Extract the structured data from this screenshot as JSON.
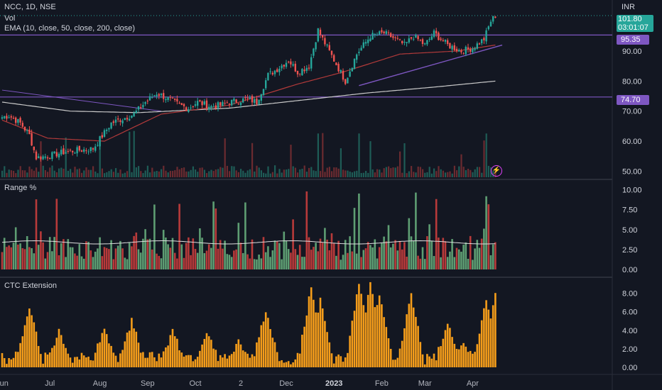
{
  "header": {
    "symbol_line": "NCC, 1D, NSE",
    "vol_label": "Vol",
    "ema_label": "EMA (10, close, 50, close, 200, close)",
    "currency": "INR"
  },
  "price_badge": {
    "price": "101.80",
    "countdown": "03:01:07",
    "color": "#26a69a"
  },
  "level_badges": [
    {
      "label": "95.35",
      "color": "#7e57c2"
    },
    {
      "label": "74.70",
      "color": "#7e57c2"
    }
  ],
  "panes": {
    "range_title": "Range %",
    "ctc_title": "CTC Extension"
  },
  "icons": {
    "lightning": "lightning-icon"
  },
  "colors": {
    "up": "#26a69a",
    "down": "#ef5350",
    "ema_red": "#b23a3a",
    "ema_white": "#c9c9c9",
    "purple": "#7e57c2",
    "ctc": "#f59d1a",
    "range_up": "#5e9e73",
    "range_down": "#b83a3a"
  },
  "chart_data": [
    {
      "type": "candlestick",
      "title": "NCC, 1D, NSE",
      "y_ticks": [
        "60.00",
        "70.00",
        "80.00",
        "90.00",
        "50.00"
      ],
      "y_tick_values": [
        60,
        70,
        80,
        90,
        50
      ],
      "ylim": [
        47.5,
        107
      ],
      "x_ticks": [
        "Jun",
        "Jul",
        "Aug",
        "Sep",
        "Oct",
        "2",
        "Dec",
        "2023",
        "Feb",
        "Mar",
        "Apr"
      ],
      "x_tick_index": [
        0,
        21,
        43,
        64,
        85,
        105,
        125,
        146,
        167,
        186,
        207
      ],
      "horizontal_levels": [
        95.35,
        74.7
      ],
      "close_anchors": [
        [
          0,
          68
        ],
        [
          3,
          68.5
        ],
        [
          8,
          66
        ],
        [
          12,
          62
        ],
        [
          15,
          54.5
        ],
        [
          20,
          55
        ],
        [
          28,
          56.5
        ],
        [
          40,
          57.5
        ],
        [
          48,
          66
        ],
        [
          58,
          69
        ],
        [
          63,
          73
        ],
        [
          68,
          76
        ],
        [
          72,
          74.5
        ],
        [
          78,
          72
        ],
        [
          82,
          71
        ],
        [
          86,
          73
        ],
        [
          92,
          71.5
        ],
        [
          96,
          72
        ],
        [
          100,
          73
        ],
        [
          108,
          74
        ],
        [
          112,
          73
        ],
        [
          117,
          82
        ],
        [
          121,
          84
        ],
        [
          126,
          87
        ],
        [
          130,
          83
        ],
        [
          135,
          85
        ],
        [
          139,
          97
        ],
        [
          141,
          94
        ],
        [
          146,
          87
        ],
        [
          151,
          80
        ],
        [
          156,
          89
        ],
        [
          162,
          95
        ],
        [
          168,
          96
        ],
        [
          173,
          94
        ],
        [
          177,
          92
        ],
        [
          181,
          95
        ],
        [
          186,
          92
        ],
        [
          190,
          96
        ],
        [
          196,
          92
        ],
        [
          202,
          90
        ],
        [
          207,
          91
        ],
        [
          212,
          94
        ],
        [
          215,
          100
        ],
        [
          217,
          101.8
        ]
      ],
      "ema50_anchors": [
        [
          0,
          67
        ],
        [
          20,
          61
        ],
        [
          45,
          60
        ],
        [
          70,
          69
        ],
        [
          100,
          72
        ],
        [
          130,
          79
        ],
        [
          150,
          83
        ],
        [
          175,
          89
        ],
        [
          200,
          90
        ],
        [
          217,
          92
        ]
      ],
      "ema200_anchors": [
        [
          0,
          73
        ],
        [
          30,
          70
        ],
        [
          60,
          69.5
        ],
        [
          100,
          71
        ],
        [
          130,
          73.5
        ],
        [
          160,
          76
        ],
        [
          190,
          78
        ],
        [
          217,
          80
        ]
      ],
      "trendline_ema10_anchors": [
        [
          157,
          78.5
        ],
        [
          220,
          92
        ]
      ],
      "descending_trendline": [
        [
          0,
          77
        ],
        [
          70,
          70
        ]
      ],
      "volume_scale_max": 1.0
    },
    {
      "type": "bar",
      "title": "Range %",
      "y_ticks": [
        "10.00",
        "7.50",
        "5.00",
        "2.50",
        "0.00"
      ],
      "y_tick_values": [
        10,
        7.5,
        5,
        2.5,
        0
      ],
      "ylim": [
        0,
        10.5
      ],
      "avg_value": 3.4
    },
    {
      "type": "bar",
      "title": "CTC Extension",
      "y_ticks": [
        "8.00",
        "6.00",
        "4.00",
        "2.00",
        "0.00"
      ],
      "y_tick_values": [
        8,
        6,
        4,
        2,
        0
      ],
      "ylim": [
        0,
        9.2
      ],
      "peaks": [
        [
          12,
          6.2
        ],
        [
          25,
          3.5
        ],
        [
          45,
          3.8
        ],
        [
          57,
          4.6
        ],
        [
          75,
          3.5
        ],
        [
          90,
          3.4
        ],
        [
          104,
          2.4
        ],
        [
          116,
          5.8
        ],
        [
          136,
          8.3
        ],
        [
          140,
          6.8
        ],
        [
          157,
          9.0
        ],
        [
          162,
          8.8
        ],
        [
          166,
          7.3
        ],
        [
          180,
          7.6
        ],
        [
          196,
          4.5
        ],
        [
          203,
          2.5
        ],
        [
          213,
          6.8
        ],
        [
          217,
          7.5
        ]
      ]
    }
  ]
}
